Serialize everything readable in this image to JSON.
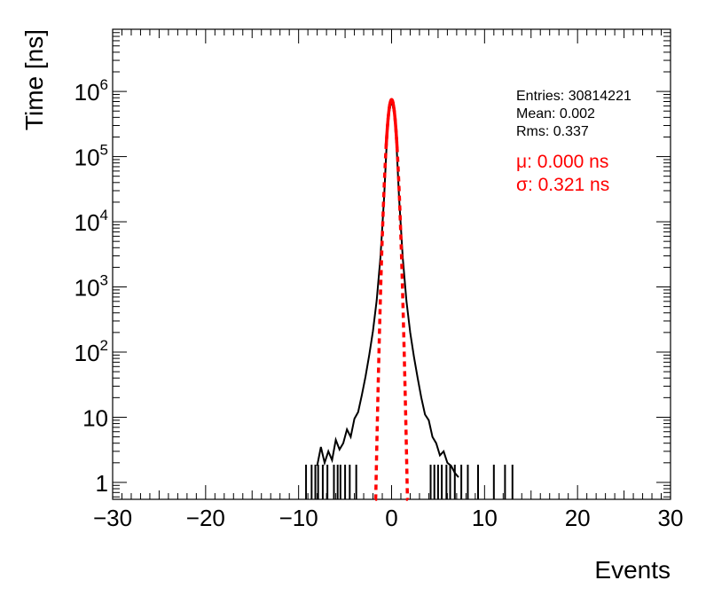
{
  "chart_data": {
    "type": "histogram",
    "xlabel": "Events",
    "ylabel": "Time [ns]",
    "xlim": [
      -30,
      30
    ],
    "ylim": [
      0.55,
      9000000
    ],
    "y_scale": "log",
    "x_ticks": [
      -30,
      -20,
      -10,
      0,
      10,
      20,
      30
    ],
    "x_tick_labels": [
      "−30",
      "−20",
      "−10",
      "0",
      "10",
      "20",
      "30"
    ],
    "y_ticks": [
      {
        "value": 1,
        "base": "1",
        "exp": ""
      },
      {
        "value": 10,
        "base": "10",
        "exp": ""
      },
      {
        "value": 100,
        "base": "10",
        "exp": "2"
      },
      {
        "value": 1000,
        "base": "10",
        "exp": "3"
      },
      {
        "value": 10000,
        "base": "10",
        "exp": "4"
      },
      {
        "value": 100000,
        "base": "10",
        "exp": "5"
      },
      {
        "value": 1000000,
        "base": "10",
        "exp": "6"
      }
    ],
    "stats": {
      "entries": "Entries: 30814221",
      "mean": "Mean: 0.002",
      "rms": "Rms: 0.337"
    },
    "fit_stats": {
      "mu": "μ: 0.000 ns",
      "sigma": "σ: 0.321 ns"
    },
    "histogram": {
      "color": "#000000",
      "core_peak": 750000,
      "core_sigma": 0.33,
      "tail_amplitude": 8000,
      "tail_slope": 0.52,
      "points": [
        [
          -8.0,
          1.8
        ],
        [
          -7.6,
          3.5
        ],
        [
          -7.2,
          2.0
        ],
        [
          -6.8,
          3.0
        ],
        [
          -6.4,
          2.2
        ],
        [
          -6.0,
          4.5
        ],
        [
          -5.6,
          3.2
        ],
        [
          -5.2,
          4.0
        ],
        [
          -4.8,
          6.5
        ],
        [
          -4.4,
          5.0
        ],
        [
          -4.0,
          9.5
        ],
        [
          -3.6,
          12
        ],
        [
          -3.2,
          22
        ],
        [
          -2.8,
          42
        ],
        [
          -2.4,
          90
        ],
        [
          -2.0,
          210
        ],
        [
          -1.6,
          620
        ],
        [
          -1.2,
          2800
        ],
        [
          -0.8,
          24000
        ],
        [
          -0.4,
          370000
        ],
        [
          0.0,
          750000
        ],
        [
          0.4,
          370000
        ],
        [
          0.8,
          24000
        ],
        [
          1.2,
          2800
        ],
        [
          1.6,
          600
        ],
        [
          2.0,
          200
        ],
        [
          2.4,
          85
        ],
        [
          2.8,
          40
        ],
        [
          3.2,
          20
        ],
        [
          3.6,
          11
        ],
        [
          4.0,
          9
        ],
        [
          4.4,
          5
        ],
        [
          4.8,
          4
        ],
        [
          5.2,
          2.6
        ],
        [
          5.6,
          3.0
        ],
        [
          6.0,
          2.0
        ],
        [
          6.4,
          1.8
        ],
        [
          6.8,
          1.4
        ],
        [
          7.2,
          1.2
        ]
      ],
      "isolated_bins": [
        [
          -9.2,
          1
        ],
        [
          -8.6,
          1
        ],
        [
          -8.2,
          1
        ],
        [
          -7.9,
          1
        ],
        [
          -7.4,
          1
        ],
        [
          -6.9,
          1
        ],
        [
          -6.2,
          1
        ],
        [
          -5.8,
          1
        ],
        [
          -5.5,
          1
        ],
        [
          -5.0,
          1
        ],
        [
          -4.5,
          1
        ],
        [
          -3.8,
          1
        ],
        [
          4.2,
          1
        ],
        [
          4.6,
          1
        ],
        [
          5.0,
          1
        ],
        [
          5.4,
          1
        ],
        [
          5.9,
          1
        ],
        [
          6.3,
          1
        ],
        [
          6.8,
          1
        ],
        [
          7.5,
          1
        ],
        [
          8.2,
          1
        ],
        [
          9.3,
          1
        ],
        [
          11.0,
          1
        ],
        [
          12.2,
          1
        ],
        [
          13.0,
          1
        ]
      ]
    },
    "fit": {
      "type": "gaussian",
      "color": "#ff0000",
      "mu": 0.0,
      "sigma": 0.321,
      "amplitude": 750000,
      "solid_range": [
        -0.6,
        0.6
      ],
      "dashed_range": [
        -1.75,
        1.75
      ]
    }
  }
}
